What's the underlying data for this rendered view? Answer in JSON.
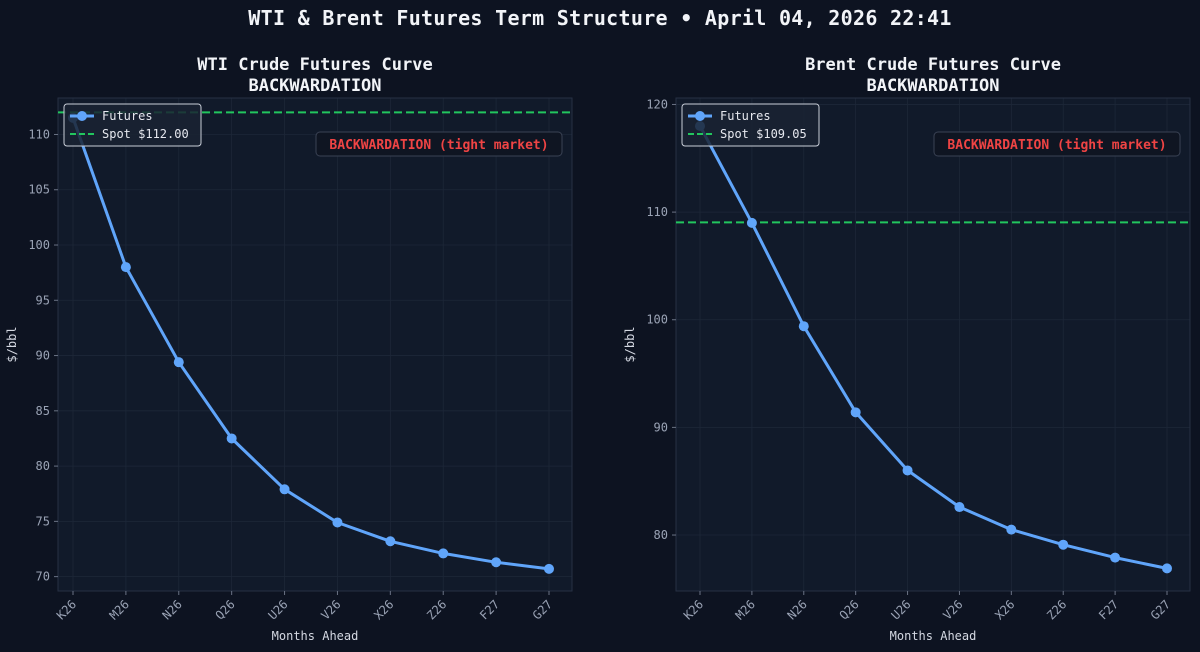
{
  "suptitle": "WTI & Brent Futures Term Structure • April 04, 2026 22:41",
  "colors": {
    "figure_bg": "#0d1321",
    "axes_bg": "#111a2a",
    "futures_line": "#60a5fa",
    "spot_line": "#22c55e",
    "annotation_text": "#ef4444",
    "tick_text": "#9aa3b5"
  },
  "chart_data": [
    {
      "type": "line",
      "title": "WTI Crude Futures Curve",
      "subtitle": "BACKWARDATION",
      "xlabel": "Months Ahead",
      "ylabel": "$/bbl",
      "categories": [
        "K26",
        "M26",
        "N26",
        "Q26",
        "U26",
        "V26",
        "X26",
        "Z26",
        "F27",
        "G27"
      ],
      "series": [
        {
          "name": "Futures",
          "values": [
            111.5,
            98.0,
            89.4,
            82.5,
            77.9,
            74.9,
            73.2,
            72.1,
            71.3,
            70.7
          ]
        }
      ],
      "spot": {
        "label": "Spot $112.00",
        "value": 112.0
      },
      "annotation": "BACKWARDATION (tight market)",
      "ylim": [
        68.7,
        113.3
      ],
      "yticks": [
        70,
        75,
        80,
        85,
        90,
        95,
        100,
        105,
        110
      ],
      "grid": true,
      "legend_position": "upper-left"
    },
    {
      "type": "line",
      "title": "Brent Crude Futures Curve",
      "subtitle": "BACKWARDATION",
      "xlabel": "Months Ahead",
      "ylabel": "$/bbl",
      "categories": [
        "K26",
        "M26",
        "N26",
        "Q26",
        "U26",
        "V26",
        "X26",
        "Z26",
        "F27",
        "G27"
      ],
      "series": [
        {
          "name": "Futures",
          "values": [
            118.0,
            109.0,
            99.4,
            91.4,
            86.0,
            82.6,
            80.5,
            79.1,
            77.9,
            76.9
          ]
        }
      ],
      "spot": {
        "label": "Spot $109.05",
        "value": 109.05
      },
      "annotation": "BACKWARDATION (tight market)",
      "ylim": [
        74.8,
        120.6
      ],
      "yticks": [
        80,
        90,
        100,
        110,
        120
      ],
      "grid": true,
      "legend_position": "upper-left"
    }
  ]
}
